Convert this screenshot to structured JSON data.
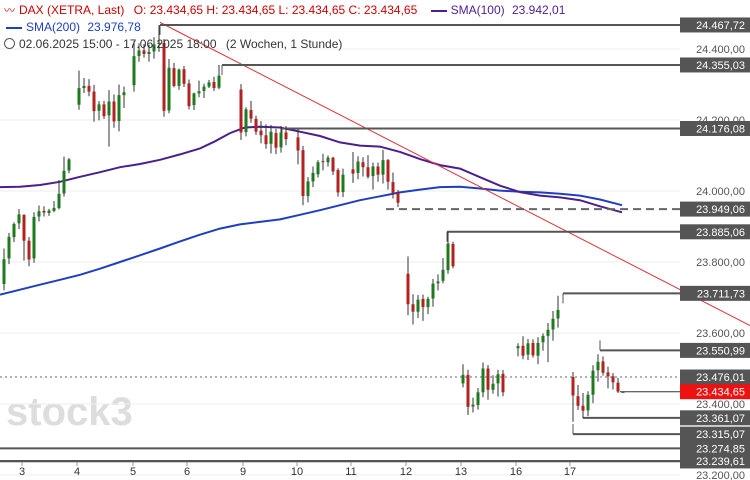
{
  "legend": {
    "instrument": "DAX (XETRA, Last)",
    "ohlc": "O: 23.434,65  H: 23.434,65  L: 23.434,65  C: 23.434,65",
    "sma100_label": "SMA(100)",
    "sma100_value": "23.942,01",
    "sma200_label": "SMA(200)",
    "sma200_value": "23.976,78",
    "period": "02.06.2025 15:00 - 17.06.2025 18:00",
    "interval": "(2 Wochen, 1 Stunde)",
    "colors": {
      "sma100": "#4b1f8f",
      "sma200": "#1f3fbf",
      "title": "#cc0000"
    }
  },
  "watermark": "stock3",
  "chart_data": {
    "type": "candlestick",
    "title": "DAX (XETRA, Last)",
    "ylim": [
      23200,
      24500
    ],
    "y_ticks": [
      {
        "value": 24400,
        "label": "24.400,00"
      },
      {
        "value": 24200,
        "label": "24.200,00"
      },
      {
        "value": 24000,
        "label": "24.000,00"
      },
      {
        "value": 23800,
        "label": "23.800,00"
      },
      {
        "value": 23600,
        "label": "23.600,00"
      },
      {
        "value": 23400,
        "label": "23.400,00"
      },
      {
        "value": 23200,
        "label": "23.200,00"
      }
    ],
    "x_ticks": [
      "3",
      "4",
      "5",
      "6",
      "9",
      "10",
      "11",
      "12",
      "13",
      "16",
      "17"
    ],
    "levels": [
      {
        "value": 24467.72,
        "label": "24.467,72"
      },
      {
        "value": 24355.03,
        "label": "24.355,03"
      },
      {
        "value": 24176.08,
        "label": "24.176,08"
      },
      {
        "value": 23949.06,
        "label": "23.949,06",
        "style": "dashed"
      },
      {
        "value": 23885.06,
        "label": "23.885,06"
      },
      {
        "value": 23711.73,
        "label": "23.711,73"
      },
      {
        "value": 23550.99,
        "label": "23.550,99"
      },
      {
        "value": 23476.01,
        "label": "23.476,01",
        "style": "dotted"
      },
      {
        "value": 23434.65,
        "label": "23.434,65",
        "style": "current"
      },
      {
        "value": 23361.07,
        "label": "23.361,07"
      },
      {
        "value": 23315.07,
        "label": "23.315,07"
      },
      {
        "value": 23274.85,
        "label": "23.274,85"
      },
      {
        "value": 23239.61,
        "label": "23.239,61"
      }
    ],
    "sma100": [
      [
        0,
        24011
      ],
      [
        20,
        24012
      ],
      [
        40,
        24017
      ],
      [
        60,
        24026
      ],
      [
        80,
        24040
      ],
      [
        100,
        24053
      ],
      [
        120,
        24067
      ],
      [
        140,
        24076
      ],
      [
        160,
        24088
      ],
      [
        180,
        24103
      ],
      [
        200,
        24120
      ],
      [
        215,
        24140
      ],
      [
        230,
        24163
      ],
      [
        245,
        24179
      ],
      [
        260,
        24181
      ],
      [
        280,
        24179
      ],
      [
        300,
        24167
      ],
      [
        320,
        24155
      ],
      [
        340,
        24137
      ],
      [
        360,
        24128
      ],
      [
        380,
        24125
      ],
      [
        400,
        24110
      ],
      [
        420,
        24090
      ],
      [
        440,
        24073
      ],
      [
        460,
        24063
      ],
      [
        480,
        24039
      ],
      [
        500,
        24015
      ],
      [
        520,
        23997
      ],
      [
        540,
        23987
      ],
      [
        560,
        23982
      ],
      [
        580,
        23974
      ],
      [
        600,
        23957
      ],
      [
        622,
        23940
      ]
    ],
    "sma200": [
      [
        0,
        23708
      ],
      [
        20,
        23722
      ],
      [
        40,
        23736
      ],
      [
        60,
        23750
      ],
      [
        80,
        23764
      ],
      [
        100,
        23781
      ],
      [
        120,
        23800
      ],
      [
        140,
        23819
      ],
      [
        160,
        23838
      ],
      [
        180,
        23858
      ],
      [
        200,
        23877
      ],
      [
        220,
        23894
      ],
      [
        240,
        23906
      ],
      [
        260,
        23913
      ],
      [
        280,
        23920
      ],
      [
        300,
        23933
      ],
      [
        320,
        23946
      ],
      [
        340,
        23960
      ],
      [
        360,
        23974
      ],
      [
        380,
        23985
      ],
      [
        400,
        23996
      ],
      [
        420,
        24004
      ],
      [
        440,
        24011
      ],
      [
        460,
        24012
      ],
      [
        480,
        24007
      ],
      [
        500,
        24001
      ],
      [
        520,
        23998
      ],
      [
        540,
        23996
      ],
      [
        560,
        23992
      ],
      [
        580,
        23987
      ],
      [
        600,
        23976
      ],
      [
        622,
        23960
      ]
    ],
    "trendline": {
      "from": [
        160,
        24475
      ],
      "to": [
        750,
        23621
      ]
    },
    "candles": [
      [
        4,
        23738,
        23838,
        23720,
        23808
      ],
      [
        9,
        23810,
        23882,
        23794,
        23871
      ],
      [
        14,
        23870,
        23912,
        23856,
        23907
      ],
      [
        19,
        23909,
        23949,
        23893,
        23934
      ],
      [
        24,
        23933,
        23934,
        23804,
        23860
      ],
      [
        29,
        23860,
        23870,
        23788,
        23807
      ],
      [
        34,
        23810,
        23940,
        23798,
        23927
      ],
      [
        39,
        23928,
        23959,
        23914,
        23943
      ],
      [
        44,
        23944,
        23957,
        23928,
        23939
      ],
      [
        49,
        23938,
        23950,
        23930,
        23945
      ],
      [
        54,
        23944,
        23972,
        23940,
        23952
      ],
      [
        59,
        23952,
        24031,
        23948,
        23992
      ],
      [
        64,
        23993,
        24097,
        23984,
        24057
      ],
      [
        69,
        24058,
        24093,
        24050,
        24089
      ],
      [
        79,
        24243,
        24339,
        24229,
        24290
      ],
      [
        84,
        24290,
        24318,
        24276,
        24296
      ],
      [
        89,
        24296,
        24315,
        24267,
        24280
      ],
      [
        94,
        24280,
        24299,
        24195,
        24225
      ],
      [
        99,
        24226,
        24253,
        24199,
        24244
      ],
      [
        104,
        24244,
        24254,
        24203,
        24211
      ],
      [
        109,
        24213,
        24284,
        24125,
        24252
      ],
      [
        114,
        24252,
        24272,
        24178,
        24196
      ],
      [
        119,
        24197,
        24300,
        24168,
        24270
      ],
      [
        124,
        24270,
        24294,
        24234,
        24278
      ],
      [
        134,
        24298,
        24422,
        24280,
        24380
      ],
      [
        139,
        24380,
        24416,
        24364,
        24396
      ],
      [
        144,
        24396,
        24414,
        24376,
        24386
      ],
      [
        149,
        24386,
        24412,
        24364,
        24392
      ],
      [
        154,
        24393,
        24433,
        24373,
        24413
      ],
      [
        159,
        24414,
        24467,
        24392,
        24418
      ],
      [
        164,
        24417,
        24428,
        24209,
        24226
      ],
      [
        169,
        24227,
        24372,
        24219,
        24347
      ],
      [
        174,
        24346,
        24361,
        24292,
        24296
      ],
      [
        179,
        24296,
        24345,
        24285,
        24342
      ],
      [
        184,
        24343,
        24352,
        24293,
        24302
      ],
      [
        189,
        24303,
        24314,
        24230,
        24239
      ],
      [
        194,
        24242,
        24277,
        24228,
        24275
      ],
      [
        199,
        24275,
        24311,
        24264,
        24281
      ],
      [
        204,
        24282,
        24302,
        24262,
        24294
      ],
      [
        209,
        24294,
        24313,
        24290,
        24306
      ],
      [
        214,
        24307,
        24322,
        24282,
        24290
      ],
      [
        219,
        24291,
        24355,
        24287,
        24325
      ],
      [
        241,
        24286,
        24301,
        24144,
        24165
      ],
      [
        246,
        24166,
        24236,
        24154,
        24230
      ],
      [
        251,
        24228,
        24254,
        24192,
        24204
      ],
      [
        256,
        24203,
        24212,
        24158,
        24167
      ],
      [
        261,
        24170,
        24197,
        24134,
        24157
      ],
      [
        266,
        24157,
        24188,
        24119,
        24132
      ],
      [
        271,
        24133,
        24186,
        24106,
        24167
      ],
      [
        276,
        24163,
        24175,
        24104,
        24122
      ],
      [
        281,
        24123,
        24183,
        24108,
        24165
      ],
      [
        286,
        24165,
        24183,
        24129,
        24146
      ],
      [
        298,
        24151,
        24174,
        24075,
        24114
      ],
      [
        303,
        24115,
        24127,
        23960,
        23986
      ],
      [
        308,
        23986,
        24039,
        23968,
        24027
      ],
      [
        313,
        24027,
        24069,
        24011,
        24051
      ],
      [
        318,
        24047,
        24087,
        24038,
        24081
      ],
      [
        323,
        24084,
        24105,
        24058,
        24082
      ],
      [
        328,
        24081,
        24100,
        24069,
        24094
      ],
      [
        333,
        24094,
        24096,
        24045,
        24055
      ],
      [
        338,
        24059,
        24064,
        23984,
        23996
      ],
      [
        343,
        23997,
        24063,
        23983,
        24046
      ],
      [
        353,
        24061,
        24110,
        24023,
        24049
      ],
      [
        358,
        24051,
        24098,
        24033,
        24083
      ],
      [
        363,
        24081,
        24095,
        24041,
        24067
      ],
      [
        368,
        24067,
        24101,
        24035,
        24040
      ],
      [
        373,
        24042,
        24080,
        24004,
        24069
      ],
      [
        378,
        24069,
        24080,
        24026,
        24046
      ],
      [
        383,
        24046,
        24116,
        24021,
        24087
      ],
      [
        388,
        24087,
        24090,
        24004,
        24026
      ],
      [
        393,
        24025,
        24052,
        23979,
        23993
      ],
      [
        398,
        23994,
        24003,
        23955,
        23967
      ],
      [
        408,
        23767,
        23816,
        23650,
        23681
      ],
      [
        413,
        23681,
        23709,
        23624,
        23660
      ],
      [
        418,
        23660,
        23707,
        23642,
        23694
      ],
      [
        423,
        23696,
        23708,
        23634,
        23673
      ],
      [
        428,
        23673,
        23702,
        23653,
        23696
      ],
      [
        433,
        23697,
        23752,
        23674,
        23739
      ],
      [
        438,
        23740,
        23765,
        23720,
        23745
      ],
      [
        443,
        23747,
        23811,
        23740,
        23778
      ],
      [
        448,
        23777,
        23885,
        23767,
        23852
      ],
      [
        453,
        23851,
        23857,
        23782,
        23788
      ],
      [
        463,
        23458,
        23512,
        23447,
        23482
      ],
      [
        468,
        23482,
        23497,
        23369,
        23392
      ],
      [
        473,
        23393,
        23418,
        23376,
        23398
      ],
      [
        478,
        23397,
        23445,
        23384,
        23433
      ],
      [
        483,
        23433,
        23517,
        23419,
        23500
      ],
      [
        488,
        23500,
        23510,
        23412,
        23440
      ],
      [
        493,
        23440,
        23481,
        23429,
        23457
      ],
      [
        498,
        23458,
        23496,
        23421,
        23484
      ],
      [
        503,
        23485,
        23496,
        23422,
        23433
      ],
      [
        518,
        23557,
        23571,
        23534,
        23563
      ],
      [
        523,
        23564,
        23591,
        23526,
        23536
      ],
      [
        528,
        23539,
        23583,
        23524,
        23571
      ],
      [
        533,
        23572,
        23582,
        23531,
        23537
      ],
      [
        538,
        23536,
        23588,
        23512,
        23572
      ],
      [
        543,
        23574,
        23599,
        23550,
        23592
      ],
      [
        548,
        23592,
        23628,
        23518,
        23609
      ],
      [
        553,
        23610,
        23662,
        23578,
        23640
      ],
      [
        558,
        23641,
        23705,
        23615,
        23665
      ],
      [
        573,
        23476,
        23490,
        23350,
        23424
      ],
      [
        578,
        23422,
        23454,
        23383,
        23395
      ],
      [
        583,
        23395,
        23431,
        23360,
        23381
      ],
      [
        588,
        23382,
        23436,
        23366,
        23426
      ],
      [
        593,
        23426,
        23509,
        23402,
        23494
      ],
      [
        598,
        23495,
        23540,
        23463,
        23519
      ],
      [
        603,
        23520,
        23534,
        23480,
        23488
      ],
      [
        608,
        23489,
        23505,
        23444,
        23478
      ],
      [
        613,
        23478,
        23487,
        23441,
        23461
      ],
      [
        618,
        23460,
        23474,
        23431,
        23435
      ],
      [
        623,
        23434,
        23435,
        23434,
        23434
      ]
    ]
  }
}
